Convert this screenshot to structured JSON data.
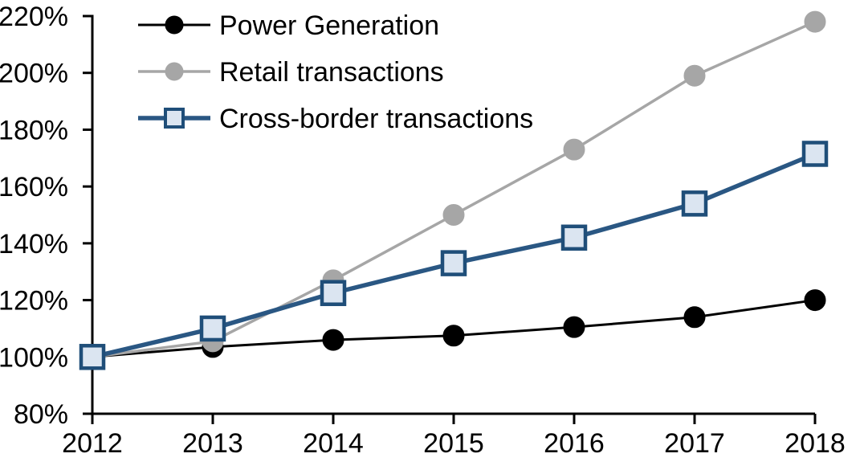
{
  "chart_data": {
    "type": "line",
    "title": "",
    "xlabel": "",
    "ylabel": "",
    "x": [
      2012,
      2013,
      2014,
      2015,
      2016,
      2017,
      2018
    ],
    "series": [
      {
        "name": "Power Generation",
        "color": "#000000",
        "line_width": 3,
        "marker": "circle",
        "marker_fill": "#000000",
        "marker_stroke": "#000000",
        "values": [
          100,
          103.5,
          106,
          107.5,
          110.5,
          114,
          120
        ]
      },
      {
        "name": "Retail transactions",
        "color": "#A6A6A6",
        "line_width": 3.5,
        "marker": "circle",
        "marker_fill": "#A6A6A6",
        "marker_stroke": "#A6A6A6",
        "values": [
          100,
          105.5,
          127,
          150,
          173,
          199,
          218
        ]
      },
      {
        "name": "Cross-border transactions",
        "color": "#2A5783",
        "line_width": 5.5,
        "marker": "square",
        "marker_fill": "#DBE5F1",
        "marker_stroke": "#1F4E79",
        "values": [
          100,
          110,
          122.5,
          133,
          142,
          154,
          171.5
        ]
      }
    ],
    "ylim": [
      80,
      220
    ],
    "ytick_step": 20,
    "ytick_suffix": "%",
    "ytick_labels": [
      "80%",
      "100%",
      "120%",
      "140%",
      "160%",
      "180%",
      "200%",
      "220%"
    ],
    "xtick_labels": [
      "2012",
      "2013",
      "2014",
      "2015",
      "2016",
      "2017",
      "2018"
    ],
    "grid": false,
    "legend_position": "top-left-inside",
    "axis_color": "#000000",
    "background_color": "#FFFFFF"
  }
}
